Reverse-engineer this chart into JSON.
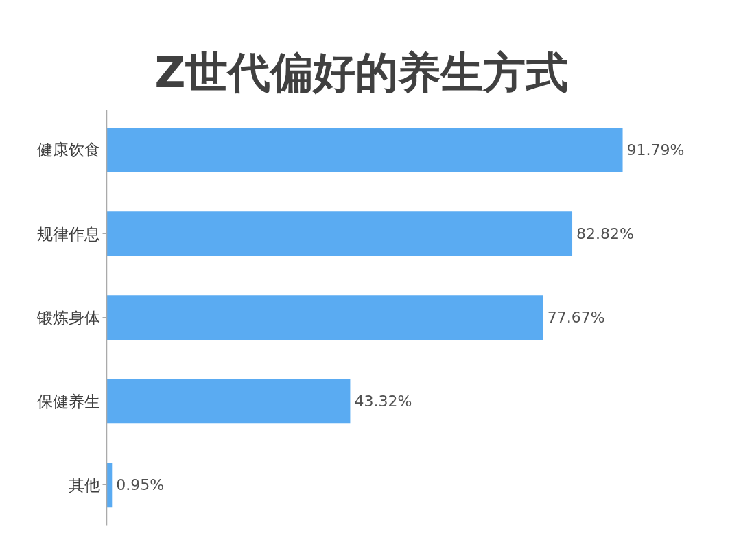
{
  "chart_data": {
    "type": "bar",
    "orientation": "horizontal",
    "title": "Z世代偏好的养生方式",
    "categories": [
      "健康饮食",
      "规律作息",
      "锻炼身体",
      "保健养生",
      "其他"
    ],
    "values": [
      91.79,
      82.82,
      77.67,
      43.32,
      0.95
    ],
    "value_labels": [
      "91.79%",
      "82.82%",
      "77.67%",
      "43.32%",
      "0.95%"
    ],
    "color": "#5aabf2",
    "tick_labels": "y"
  }
}
